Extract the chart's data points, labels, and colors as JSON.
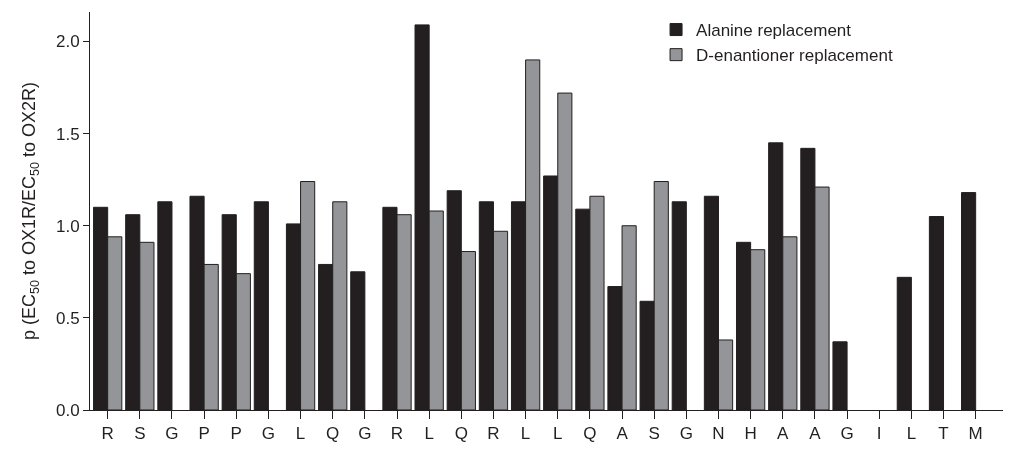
{
  "chart_data": {
    "type": "bar",
    "categories": [
      "R",
      "S",
      "G",
      "P",
      "P",
      "G",
      "L",
      "Q",
      "G",
      "R",
      "L",
      "Q",
      "R",
      "L",
      "L",
      "Q",
      "A",
      "S",
      "G",
      "N",
      "H",
      "A",
      "A",
      "G",
      "I",
      "L",
      "T",
      "M"
    ],
    "series": [
      {
        "name": "Alanine replacement",
        "color": "#231f20",
        "values": [
          1.1,
          1.06,
          1.13,
          1.16,
          1.06,
          1.13,
          1.01,
          0.79,
          0.75,
          1.1,
          2.09,
          1.19,
          1.13,
          1.13,
          1.27,
          1.09,
          0.67,
          0.59,
          1.13,
          1.16,
          0.91,
          1.45,
          1.42,
          0.37,
          null,
          0.72,
          1.05,
          1.18
        ]
      },
      {
        "name": "D-enantioner replacement",
        "color": "#939598",
        "values": [
          0.94,
          0.91,
          null,
          0.79,
          0.74,
          null,
          1.24,
          1.13,
          null,
          1.06,
          1.08,
          0.86,
          0.97,
          1.9,
          1.72,
          1.16,
          1.0,
          1.24,
          null,
          0.38,
          0.87,
          0.94,
          1.21,
          null,
          null,
          null,
          null,
          null
        ]
      }
    ],
    "ylabel": "p (EC$_{50}$ to OX1R/EC$_{50}$ to OX2R)",
    "ylim": [
      0,
      2.16
    ],
    "yticks": [
      {
        "value": 0,
        "label": "0.0"
      },
      {
        "value": 0.5,
        "label": "0.5"
      },
      {
        "value": 1,
        "label": "1.0"
      },
      {
        "value": 1.5,
        "label": "1.5"
      },
      {
        "value": 2,
        "label": "2.0"
      }
    ],
    "legend": "top right"
  }
}
